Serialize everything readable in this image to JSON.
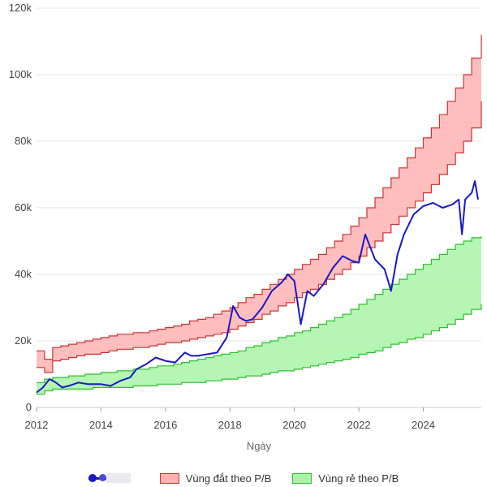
{
  "chart_data": {
    "type": "area",
    "xlabel": "Ngày",
    "ylabel": "",
    "xlim": [
      2012.0,
      2025.8
    ],
    "ylim": [
      0,
      120000
    ],
    "x_ticks": [
      "2012",
      "2014",
      "2016",
      "2018",
      "2020",
      "2022",
      "2024"
    ],
    "x_tick_values": [
      2012,
      2014,
      2016,
      2018,
      2020,
      2022,
      2024
    ],
    "y_ticks": [
      "0",
      "20k",
      "40k",
      "60k",
      "80k",
      "100k",
      "120k"
    ],
    "y_tick_values": [
      0,
      20000,
      40000,
      60000,
      80000,
      100000,
      120000
    ],
    "grid": "horizontal",
    "legend_position": "bottom",
    "series": [
      {
        "name": "",
        "kind": "line",
        "color": "#1a18c4",
        "x": [
          2012.0,
          2012.2,
          2012.4,
          2012.6,
          2012.8,
          2013.0,
          2013.3,
          2013.6,
          2014.0,
          2014.3,
          2014.6,
          2014.9,
          2015.1,
          2015.4,
          2015.7,
          2016.0,
          2016.3,
          2016.6,
          2016.8,
          2017.0,
          2017.3,
          2017.6,
          2017.9,
          2018.1,
          2018.3,
          2018.5,
          2018.7,
          2019.0,
          2019.3,
          2019.6,
          2019.8,
          2020.0,
          2020.2,
          2020.4,
          2020.6,
          2020.9,
          2021.2,
          2021.5,
          2021.8,
          2022.0,
          2022.2,
          2022.5,
          2022.8,
          2023.0,
          2023.2,
          2023.4,
          2023.7,
          2024.0,
          2024.3,
          2024.6,
          2024.9,
          2025.1,
          2025.2,
          2025.3,
          2025.5,
          2025.6,
          2025.7
        ],
        "values": [
          4500,
          6000,
          8500,
          7500,
          6000,
          6500,
          7500,
          7000,
          7000,
          6500,
          8000,
          9000,
          11500,
          13000,
          15000,
          14000,
          13500,
          16500,
          15500,
          15500,
          16000,
          16500,
          21000,
          30500,
          27000,
          26000,
          26500,
          30000,
          35000,
          37500,
          40000,
          38000,
          25000,
          35000,
          33500,
          37000,
          42000,
          45500,
          44000,
          43500,
          52000,
          44500,
          41500,
          35000,
          46000,
          52000,
          58000,
          60500,
          61500,
          60000,
          61000,
          62500,
          52000,
          62500,
          64500,
          68000,
          62500
        ]
      },
      {
        "name": "Vùng đắt theo P/B",
        "kind": "band",
        "color": "#ffb3b3",
        "stroke": "#cc3333",
        "x": [
          2012.0,
          2012.25,
          2012.5,
          2012.75,
          2013.0,
          2013.25,
          2013.5,
          2013.75,
          2014.0,
          2014.25,
          2014.5,
          2014.75,
          2015.0,
          2015.25,
          2015.5,
          2015.75,
          2016.0,
          2016.25,
          2016.5,
          2016.75,
          2017.0,
          2017.25,
          2017.5,
          2017.75,
          2018.0,
          2018.25,
          2018.5,
          2018.75,
          2019.0,
          2019.25,
          2019.5,
          2019.75,
          2020.0,
          2020.25,
          2020.5,
          2020.75,
          2021.0,
          2021.25,
          2021.5,
          2021.75,
          2022.0,
          2022.25,
          2022.5,
          2022.75,
          2023.0,
          2023.25,
          2023.5,
          2023.75,
          2024.0,
          2024.25,
          2024.5,
          2024.75,
          2025.0,
          2025.25,
          2025.5,
          2025.8
        ],
        "upper": [
          17000,
          14500,
          18000,
          18500,
          19000,
          19500,
          20000,
          20500,
          21000,
          21500,
          22000,
          22000,
          22500,
          22500,
          23000,
          23500,
          24000,
          24500,
          25000,
          26000,
          26500,
          27000,
          28000,
          29000,
          30000,
          31500,
          33000,
          34000,
          35500,
          37000,
          38500,
          40000,
          41500,
          43000,
          44500,
          46000,
          48000,
          50000,
          52000,
          54500,
          57000,
          60000,
          63000,
          66000,
          69000,
          72000,
          75000,
          78000,
          81000,
          84000,
          88000,
          92000,
          96000,
          100000,
          105000,
          112000
        ],
        "lower": [
          12000,
          10500,
          14000,
          14500,
          15000,
          15500,
          16000,
          16000,
          16500,
          17000,
          17500,
          17500,
          18000,
          18000,
          18500,
          19000,
          19500,
          19500,
          20000,
          20500,
          21000,
          21500,
          22000,
          22500,
          23500,
          24500,
          25500,
          26500,
          28000,
          29000,
          30500,
          31500,
          33000,
          34500,
          35500,
          37000,
          38500,
          40000,
          41500,
          43500,
          45500,
          48000,
          50000,
          52500,
          55000,
          57500,
          60000,
          62000,
          64500,
          67000,
          70000,
          73000,
          76500,
          80000,
          84000,
          92000
        ]
      },
      {
        "name": "Vùng rẻ theo P/B",
        "kind": "band",
        "color": "#a8f5a8",
        "stroke": "#2fbf2f",
        "x": [
          2012.0,
          2012.25,
          2012.5,
          2012.75,
          2013.0,
          2013.25,
          2013.5,
          2013.75,
          2014.0,
          2014.25,
          2014.5,
          2014.75,
          2015.0,
          2015.25,
          2015.5,
          2015.75,
          2016.0,
          2016.25,
          2016.5,
          2016.75,
          2017.0,
          2017.25,
          2017.5,
          2017.75,
          2018.0,
          2018.25,
          2018.5,
          2018.75,
          2019.0,
          2019.25,
          2019.5,
          2019.75,
          2020.0,
          2020.25,
          2020.5,
          2020.75,
          2021.0,
          2021.25,
          2021.5,
          2021.75,
          2022.0,
          2022.25,
          2022.5,
          2022.75,
          2023.0,
          2023.25,
          2023.5,
          2023.75,
          2024.0,
          2024.25,
          2024.5,
          2024.75,
          2025.0,
          2025.25,
          2025.5,
          2025.8
        ],
        "upper": [
          7500,
          8500,
          9000,
          9000,
          9500,
          9500,
          10000,
          10000,
          10500,
          10500,
          11000,
          11000,
          11500,
          11500,
          12000,
          12500,
          12500,
          13000,
          13500,
          14000,
          14500,
          15000,
          15500,
          16000,
          16500,
          17000,
          18000,
          18500,
          19500,
          20000,
          21000,
          21500,
          22500,
          23000,
          24000,
          25000,
          26000,
          27000,
          28000,
          29500,
          31000,
          32500,
          34000,
          35500,
          37000,
          38500,
          40000,
          41500,
          43000,
          44500,
          46000,
          47500,
          49000,
          50000,
          51000,
          51500
        ],
        "lower": [
          4000,
          5000,
          5500,
          5500,
          5500,
          5500,
          5500,
          6000,
          6000,
          6000,
          6000,
          6000,
          6500,
          6500,
          6500,
          7000,
          7000,
          7000,
          7500,
          7500,
          7500,
          8000,
          8000,
          8500,
          8500,
          9000,
          9500,
          9500,
          10000,
          10500,
          11000,
          11000,
          11500,
          12000,
          12500,
          13000,
          13500,
          14000,
          14500,
          15000,
          16000,
          16500,
          17000,
          18000,
          19000,
          19500,
          20500,
          21000,
          22000,
          23000,
          24000,
          25000,
          26500,
          28000,
          29500,
          31000
        ]
      }
    ],
    "annotations": []
  }
}
